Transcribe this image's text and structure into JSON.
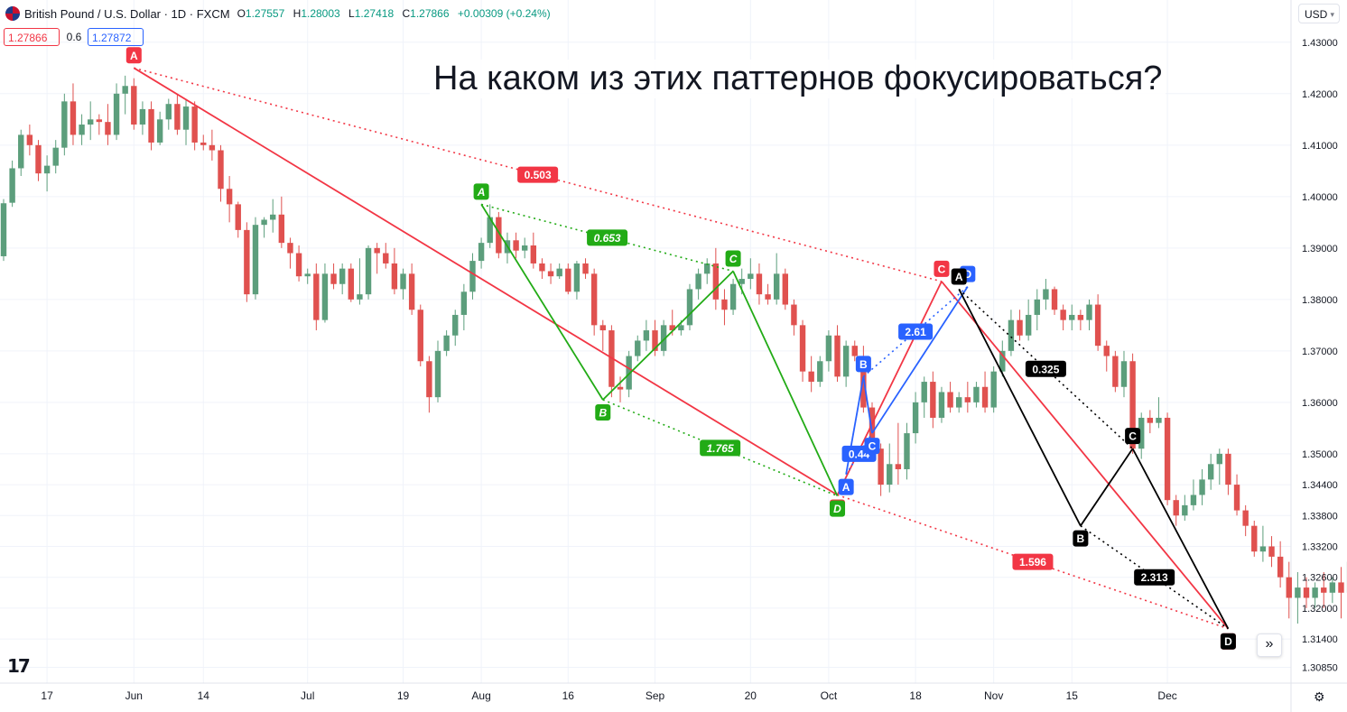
{
  "header": {
    "symbol": "British Pound / U.S. Dollar · 1D · FXCM",
    "open_label": "O",
    "open": "1.27557",
    "high_label": "H",
    "high": "1.28003",
    "low_label": "L",
    "low": "1.27418",
    "close_label": "C",
    "close": "1.27866",
    "change": "+0.00309 (+0.24%)"
  },
  "trade": {
    "sell": "1.27866",
    "spread": "0.6",
    "buy": "1.27872"
  },
  "currency": "USD",
  "headline": "На каком из этих паттернов фокусироваться?",
  "colors": {
    "up": "#5c9e7c",
    "down": "#e0514f",
    "red": "#f23645",
    "green": "#22ab16",
    "blue": "#2962ff",
    "black": "#000000"
  },
  "chart_data": {
    "type": "candlestick",
    "title": "",
    "xlabel": "",
    "ylabel": "",
    "ylim": [
      1.3063,
      1.434
    ],
    "y_ticks": [
      "1.43000",
      "1.42000",
      "1.41000",
      "1.40000",
      "1.39000",
      "1.38000",
      "1.37000",
      "1.36000",
      "1.35000",
      "1.34400",
      "1.33800",
      "1.33200",
      "1.32600",
      "1.32000",
      "1.31400",
      "1.30850"
    ],
    "x_ticks": [
      {
        "label": "17",
        "bar": 5
      },
      {
        "label": "Jun",
        "bar": 15
      },
      {
        "label": "14",
        "bar": 23
      },
      {
        "label": "Jul",
        "bar": 35
      },
      {
        "label": "19",
        "bar": 46
      },
      {
        "label": "Aug",
        "bar": 55
      },
      {
        "label": "16",
        "bar": 65
      },
      {
        "label": "Sep",
        "bar": 75
      },
      {
        "label": "20",
        "bar": 86
      },
      {
        "label": "Oct",
        "bar": 95
      },
      {
        "label": "18",
        "bar": 105
      },
      {
        "label": "Nov",
        "bar": 114
      },
      {
        "label": "15",
        "bar": 123
      },
      {
        "label": "Dec",
        "bar": 134
      }
    ],
    "ohlc": [
      [
        1.3884,
        1.3995,
        1.3875,
        1.3987
      ],
      [
        1.3988,
        1.407,
        1.398,
        1.4055
      ],
      [
        1.4055,
        1.413,
        1.404,
        1.412
      ],
      [
        1.412,
        1.414,
        1.408,
        1.41
      ],
      [
        1.41,
        1.411,
        1.403,
        1.4045
      ],
      [
        1.4045,
        1.408,
        1.401,
        1.406
      ],
      [
        1.406,
        1.411,
        1.4045,
        1.4095
      ],
      [
        1.4095,
        1.42,
        1.408,
        1.4185
      ],
      [
        1.4185,
        1.422,
        1.41,
        1.412
      ],
      [
        1.412,
        1.416,
        1.41,
        1.414
      ],
      [
        1.414,
        1.4185,
        1.411,
        1.415
      ],
      [
        1.415,
        1.416,
        1.412,
        1.4145
      ],
      [
        1.4145,
        1.418,
        1.41,
        1.412
      ],
      [
        1.412,
        1.422,
        1.411,
        1.42
      ],
      [
        1.42,
        1.4235,
        1.416,
        1.4215
      ],
      [
        1.4215,
        1.423,
        1.413,
        1.414
      ],
      [
        1.414,
        1.4185,
        1.412,
        1.417
      ],
      [
        1.417,
        1.4185,
        1.409,
        1.4105
      ],
      [
        1.4105,
        1.4165,
        1.41,
        1.415
      ],
      [
        1.415,
        1.419,
        1.413,
        1.418
      ],
      [
        1.418,
        1.42,
        1.412,
        1.413
      ],
      [
        1.413,
        1.419,
        1.41,
        1.4175
      ],
      [
        1.4175,
        1.4185,
        1.409,
        1.4105
      ],
      [
        1.4105,
        1.412,
        1.409,
        1.41
      ],
      [
        1.41,
        1.413,
        1.407,
        1.409
      ],
      [
        1.409,
        1.41,
        1.399,
        1.4015
      ],
      [
        1.4015,
        1.404,
        1.395,
        1.3985
      ],
      [
        1.3985,
        1.399,
        1.392,
        1.3935
      ],
      [
        1.3935,
        1.395,
        1.3795,
        1.381
      ],
      [
        1.381,
        1.396,
        1.38,
        1.3945
      ],
      [
        1.3945,
        1.396,
        1.392,
        1.3955
      ],
      [
        1.3955,
        1.3995,
        1.393,
        1.3965
      ],
      [
        1.3965,
        1.4,
        1.39,
        1.391
      ],
      [
        1.391,
        1.392,
        1.386,
        1.389
      ],
      [
        1.389,
        1.3905,
        1.3835,
        1.3845
      ],
      [
        1.3845,
        1.386,
        1.383,
        1.385
      ],
      [
        1.385,
        1.387,
        1.374,
        1.376
      ],
      [
        1.376,
        1.387,
        1.3755,
        1.385
      ],
      [
        1.385,
        1.387,
        1.382,
        1.383
      ],
      [
        1.383,
        1.387,
        1.381,
        1.386
      ],
      [
        1.386,
        1.387,
        1.3795,
        1.38
      ],
      [
        1.38,
        1.388,
        1.379,
        1.381
      ],
      [
        1.381,
        1.3905,
        1.38,
        1.39
      ],
      [
        1.39,
        1.391,
        1.385,
        1.389
      ],
      [
        1.389,
        1.391,
        1.386,
        1.387
      ],
      [
        1.387,
        1.39,
        1.381,
        1.382
      ],
      [
        1.382,
        1.386,
        1.38,
        1.385
      ],
      [
        1.385,
        1.387,
        1.377,
        1.378
      ],
      [
        1.378,
        1.379,
        1.367,
        1.368
      ],
      [
        1.368,
        1.369,
        1.358,
        1.361
      ],
      [
        1.361,
        1.372,
        1.36,
        1.37
      ],
      [
        1.37,
        1.374,
        1.369,
        1.373
      ],
      [
        1.373,
        1.378,
        1.371,
        1.377
      ],
      [
        1.377,
        1.383,
        1.374,
        1.3815
      ],
      [
        1.3815,
        1.389,
        1.38,
        1.3875
      ],
      [
        1.3875,
        1.392,
        1.386,
        1.391
      ],
      [
        1.391,
        1.3985,
        1.39,
        1.396
      ],
      [
        1.396,
        1.397,
        1.388,
        1.389
      ],
      [
        1.389,
        1.393,
        1.387,
        1.3915
      ],
      [
        1.3915,
        1.393,
        1.388,
        1.3895
      ],
      [
        1.3895,
        1.392,
        1.388,
        1.3905
      ],
      [
        1.3905,
        1.393,
        1.386,
        1.387
      ],
      [
        1.387,
        1.388,
        1.384,
        1.3855
      ],
      [
        1.3855,
        1.387,
        1.383,
        1.3845
      ],
      [
        1.3845,
        1.387,
        1.384,
        1.386
      ],
      [
        1.386,
        1.387,
        1.381,
        1.3815
      ],
      [
        1.3815,
        1.3875,
        1.38,
        1.387
      ],
      [
        1.387,
        1.388,
        1.384,
        1.385
      ],
      [
        1.385,
        1.386,
        1.373,
        1.375
      ],
      [
        1.375,
        1.376,
        1.37,
        1.374
      ],
      [
        1.374,
        1.375,
        1.361,
        1.363
      ],
      [
        1.363,
        1.365,
        1.36,
        1.3625
      ],
      [
        1.3625,
        1.37,
        1.361,
        1.369
      ],
      [
        1.369,
        1.373,
        1.368,
        1.372
      ],
      [
        1.372,
        1.376,
        1.37,
        1.374
      ],
      [
        1.374,
        1.376,
        1.369,
        1.37
      ],
      [
        1.37,
        1.376,
        1.369,
        1.375
      ],
      [
        1.375,
        1.378,
        1.373,
        1.374
      ],
      [
        1.374,
        1.376,
        1.373,
        1.375
      ],
      [
        1.375,
        1.383,
        1.374,
        1.382
      ],
      [
        1.382,
        1.386,
        1.38,
        1.385
      ],
      [
        1.385,
        1.388,
        1.383,
        1.387
      ],
      [
        1.387,
        1.39,
        1.378,
        1.38
      ],
      [
        1.38,
        1.382,
        1.375,
        1.378
      ],
      [
        1.378,
        1.384,
        1.377,
        1.383
      ],
      [
        1.383,
        1.386,
        1.381,
        1.384
      ],
      [
        1.384,
        1.388,
        1.382,
        1.385
      ],
      [
        1.385,
        1.387,
        1.379,
        1.381
      ],
      [
        1.381,
        1.383,
        1.379,
        1.38
      ],
      [
        1.38,
        1.389,
        1.379,
        1.385
      ],
      [
        1.385,
        1.386,
        1.378,
        1.379
      ],
      [
        1.379,
        1.38,
        1.373,
        1.375
      ],
      [
        1.375,
        1.376,
        1.364,
        1.366
      ],
      [
        1.366,
        1.369,
        1.362,
        1.364
      ],
      [
        1.364,
        1.369,
        1.363,
        1.368
      ],
      [
        1.368,
        1.374,
        1.366,
        1.373
      ],
      [
        1.373,
        1.375,
        1.364,
        1.365
      ],
      [
        1.365,
        1.372,
        1.363,
        1.371
      ],
      [
        1.371,
        1.372,
        1.368,
        1.369
      ],
      [
        1.369,
        1.371,
        1.358,
        1.359
      ],
      [
        1.359,
        1.36,
        1.35,
        1.351
      ],
      [
        1.351,
        1.352,
        1.3418,
        1.344
      ],
      [
        1.344,
        1.352,
        1.3425,
        1.348
      ],
      [
        1.348,
        1.356,
        1.344,
        1.347
      ],
      [
        1.347,
        1.356,
        1.345,
        1.354
      ],
      [
        1.354,
        1.362,
        1.352,
        1.36
      ],
      [
        1.36,
        1.365,
        1.357,
        1.364
      ],
      [
        1.364,
        1.366,
        1.355,
        1.357
      ],
      [
        1.357,
        1.363,
        1.356,
        1.362
      ],
      [
        1.362,
        1.364,
        1.358,
        1.359
      ],
      [
        1.359,
        1.362,
        1.358,
        1.361
      ],
      [
        1.361,
        1.364,
        1.358,
        1.36
      ],
      [
        1.36,
        1.364,
        1.359,
        1.363
      ],
      [
        1.363,
        1.366,
        1.358,
        1.359
      ],
      [
        1.359,
        1.367,
        1.358,
        1.366
      ],
      [
        1.366,
        1.372,
        1.365,
        1.37
      ],
      [
        1.37,
        1.378,
        1.369,
        1.376
      ],
      [
        1.376,
        1.378,
        1.372,
        1.373
      ],
      [
        1.373,
        1.38,
        1.372,
        1.377
      ],
      [
        1.377,
        1.382,
        1.374,
        1.38
      ],
      [
        1.38,
        1.384,
        1.378,
        1.382
      ],
      [
        1.382,
        1.3825,
        1.377,
        1.378
      ],
      [
        1.378,
        1.379,
        1.374,
        1.376
      ],
      [
        1.376,
        1.379,
        1.374,
        1.377
      ],
      [
        1.377,
        1.378,
        1.374,
        1.376
      ],
      [
        1.376,
        1.38,
        1.374,
        1.379
      ],
      [
        1.379,
        1.381,
        1.37,
        1.371
      ],
      [
        1.371,
        1.372,
        1.366,
        1.369
      ],
      [
        1.369,
        1.37,
        1.362,
        1.363
      ],
      [
        1.363,
        1.37,
        1.361,
        1.368
      ],
      [
        1.368,
        1.3695,
        1.35,
        1.351
      ],
      [
        1.351,
        1.358,
        1.349,
        1.357
      ],
      [
        1.357,
        1.3585,
        1.354,
        1.356
      ],
      [
        1.356,
        1.361,
        1.355,
        1.357
      ],
      [
        1.357,
        1.358,
        1.34,
        1.341
      ],
      [
        1.341,
        1.342,
        1.336,
        1.338
      ],
      [
        1.338,
        1.342,
        1.337,
        1.34
      ],
      [
        1.34,
        1.345,
        1.339,
        1.342
      ],
      [
        1.342,
        1.347,
        1.34,
        1.345
      ],
      [
        1.345,
        1.35,
        1.343,
        1.348
      ],
      [
        1.348,
        1.351,
        1.344,
        1.35
      ],
      [
        1.35,
        1.351,
        1.342,
        1.344
      ],
      [
        1.344,
        1.346,
        1.338,
        1.339
      ],
      [
        1.339,
        1.34,
        1.334,
        1.336
      ],
      [
        1.336,
        1.337,
        1.33,
        1.331
      ],
      [
        1.331,
        1.336,
        1.329,
        1.332
      ],
      [
        1.332,
        1.334,
        1.328,
        1.33
      ],
      [
        1.33,
        1.333,
        1.324,
        1.326
      ],
      [
        1.326,
        1.329,
        1.318,
        1.322
      ],
      [
        1.322,
        1.327,
        1.317,
        1.324
      ],
      [
        1.324,
        1.326,
        1.32,
        1.322
      ],
      [
        1.322,
        1.325,
        1.32,
        1.324
      ],
      [
        1.324,
        1.327,
        1.32,
        1.323
      ],
      [
        1.323,
        1.326,
        1.321,
        1.325
      ],
      [
        1.325,
        1.328,
        1.318,
        1.323
      ],
      [
        1.323,
        1.33,
        1.322,
        1.329
      ],
      [
        1.329,
        1.336,
        1.328,
        1.333
      ],
      [
        1.333,
        1.334,
        1.324,
        1.325
      ]
    ],
    "patterns": [
      {
        "name": "red",
        "color": "#f23645",
        "points": [
          {
            "label": "A",
            "bar": 15,
            "price": 1.425,
            "pos": "above"
          },
          {
            "label": "B",
            "bar": 96,
            "price": 1.342,
            "pos": "below"
          },
          {
            "label": "C",
            "bar": 108,
            "price": 1.3835,
            "pos": "above"
          },
          {
            "label": "D",
            "bar": 141,
            "price": 1.316,
            "pos": "below"
          }
        ],
        "ratios": [
          {
            "text": "0.503",
            "from": 0,
            "to": 2
          },
          {
            "text": "1.596",
            "from": 1,
            "to": 3
          }
        ]
      },
      {
        "name": "green",
        "color": "#22ab16",
        "points": [
          {
            "label": "A",
            "bar": 55,
            "price": 1.3985,
            "pos": "above"
          },
          {
            "label": "B",
            "bar": 69,
            "price": 1.3605,
            "pos": "below"
          },
          {
            "label": "C",
            "bar": 84,
            "price": 1.3855,
            "pos": "above"
          },
          {
            "label": "D",
            "bar": 96,
            "price": 1.3418,
            "pos": "below"
          }
        ],
        "ratios": [
          {
            "text": "0.653",
            "from": 0,
            "to": 2
          },
          {
            "text": "1.765",
            "from": 1,
            "to": 3
          }
        ]
      },
      {
        "name": "blue",
        "color": "#2962ff",
        "points": [
          {
            "label": "A",
            "bar": 97,
            "price": 1.346,
            "pos": "below"
          },
          {
            "label": "B",
            "bar": 99,
            "price": 1.365,
            "pos": "above"
          },
          {
            "label": "C",
            "bar": 100,
            "price": 1.354,
            "pos": "below"
          },
          {
            "label": "D",
            "bar": 111,
            "price": 1.3825,
            "pos": "above"
          }
        ],
        "ratios": [
          {
            "text": "2.61",
            "from": 1,
            "to": 3
          },
          {
            "text": "0.44",
            "from": 0,
            "to": 2
          }
        ]
      },
      {
        "name": "black",
        "color": "#000000",
        "points": [
          {
            "label": "A",
            "bar": 110,
            "price": 1.382,
            "pos": "above"
          },
          {
            "label": "B",
            "bar": 124,
            "price": 1.336,
            "pos": "below"
          },
          {
            "label": "C",
            "bar": 130,
            "price": 1.351,
            "pos": "above"
          },
          {
            "label": "D",
            "bar": 141,
            "price": 1.316,
            "pos": "below"
          }
        ],
        "ratios": [
          {
            "text": "0.325",
            "from": 0,
            "to": 2
          },
          {
            "text": "2.313",
            "from": 1,
            "to": 3
          }
        ]
      }
    ]
  }
}
